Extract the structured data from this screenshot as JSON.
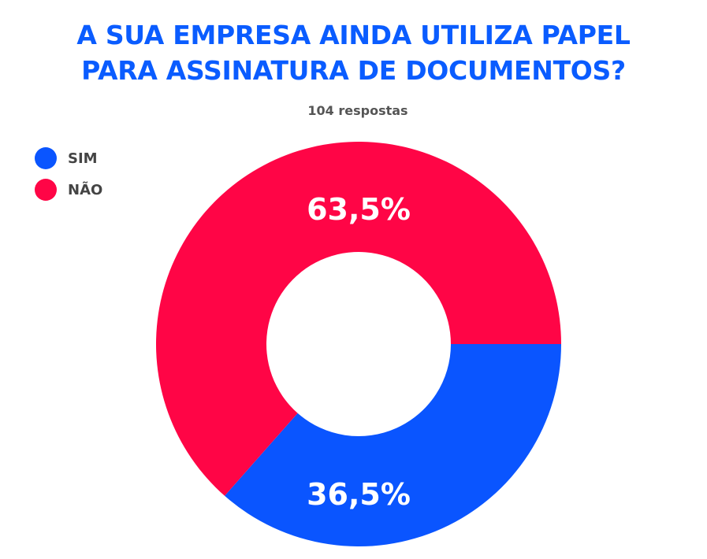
{
  "title_lines": [
    "A SUA EMPRESA AINDA UTILIZA PAPEL",
    "PARA ASSINATURA DE DOCUMENTOS?"
  ],
  "subtitle": "104 respostas",
  "colors": {
    "title": "#0a5cff",
    "sim": "#0a55ff",
    "nao": "#ff0546"
  },
  "chart_data": {
    "type": "pie",
    "title": "A SUA EMPRESA AINDA UTILIZA PAPEL PARA ASSINATURA DE DOCUMENTOS?",
    "subtitle": "104 respostas",
    "donut": true,
    "legend_position": "top-left",
    "categories": [
      "SIM",
      "NÃO"
    ],
    "values": [
      36.5,
      63.5
    ],
    "labels": [
      "36,5%",
      "63,5%"
    ],
    "colors": [
      "#0a55ff",
      "#ff0546"
    ]
  }
}
